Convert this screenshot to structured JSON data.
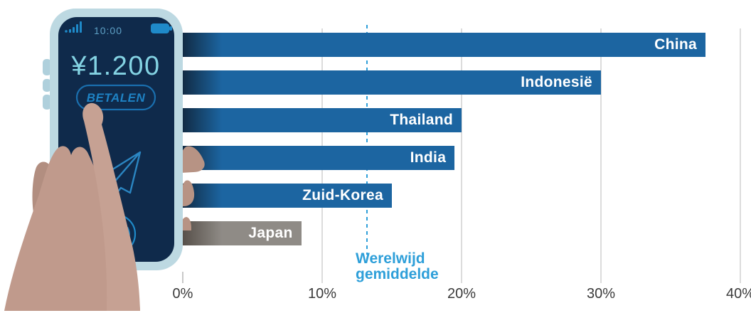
{
  "page": {
    "background": "#ffffff"
  },
  "chart_data": {
    "type": "bar",
    "orientation": "horizontal",
    "title": "",
    "categories": [
      "China",
      "Indonesië",
      "Thailand",
      "India",
      "Zuid-Korea",
      "Japan"
    ],
    "values": [
      37.5,
      30,
      20,
      19.5,
      15,
      8.5
    ],
    "unit": "%",
    "xlim": [
      0,
      40
    ],
    "x_ticks": [
      "0%",
      "10%",
      "20%",
      "30%",
      "40%"
    ],
    "grid": true,
    "legend": "none",
    "bar_colors": [
      "#1c65a1",
      "#1c65a1",
      "#1c65a1",
      "#1c65a1",
      "#1c65a1",
      "#8f8b86"
    ],
    "bar_shadow_colors": [
      "#112b44",
      "#112b44",
      "#112b44",
      "#112b44",
      "#112b44",
      "#57504a"
    ],
    "value_label_color": "#ffffff",
    "reference_line": {
      "value": 13.2,
      "color": "#2e9fd9",
      "style": "dashed",
      "label_line1": "Werelwijd",
      "label_line2": "gemiddelde"
    }
  },
  "axis": {
    "gridline_color": "#dcdcdc",
    "tick_color": "#c9c9c9",
    "label_color": "#3a3a3a"
  },
  "phone": {
    "time": "10:00",
    "amount": "¥1.200",
    "pay_button_label": "BETALEN",
    "body_color": "#bdd9e2",
    "screen_color": "#0f2a4b",
    "accent_color": "#1f8ac9",
    "time_color": "#5d9fc4",
    "amount_color": "#84d3e3",
    "button_color": "#1e82c4",
    "hand_color": "#c09a8c",
    "finger_color": "#b28e80"
  }
}
